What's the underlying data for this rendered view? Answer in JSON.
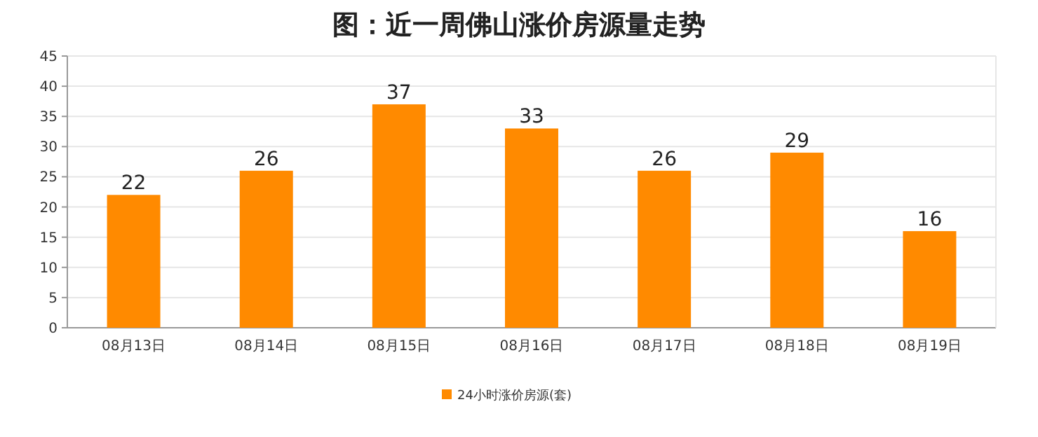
{
  "chart_data": {
    "type": "bar",
    "title": "图：近一周佛山涨价房源量走势",
    "categories": [
      "08月13日",
      "08月14日",
      "08月15日",
      "08月16日",
      "08月17日",
      "08月18日",
      "08月19日"
    ],
    "series": [
      {
        "name": "24小时涨价房源(套)",
        "color": "#ff8a00",
        "values": [
          22,
          26,
          37,
          33,
          26,
          29,
          16
        ]
      }
    ],
    "ylim": [
      0,
      45
    ],
    "yticks": [
      0,
      5,
      10,
      15,
      20,
      25,
      30,
      35,
      40,
      45
    ],
    "grid": "y",
    "legend": "bottom",
    "data_labels": true
  }
}
